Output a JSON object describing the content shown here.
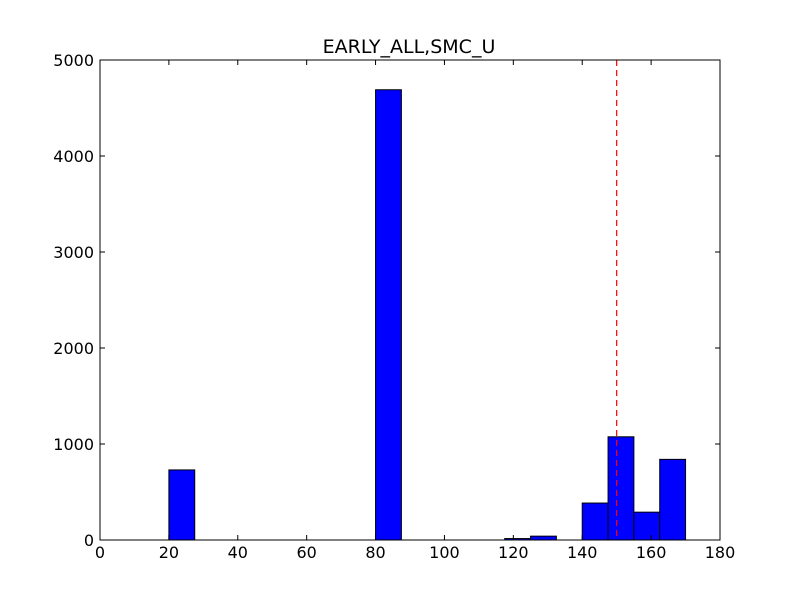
{
  "chart_data": {
    "type": "bar",
    "title": "EARLY_ALL,SMC_U",
    "xlabel": "",
    "ylabel": "",
    "xlim": [
      0,
      180
    ],
    "ylim": [
      0,
      5000
    ],
    "x_ticks": [
      0,
      20,
      40,
      60,
      80,
      100,
      120,
      140,
      160,
      180
    ],
    "y_ticks": [
      0,
      1000,
      2000,
      3000,
      4000,
      5000
    ],
    "bar_color": "#0000ff",
    "grid": false,
    "bins": [
      {
        "start": 20,
        "end": 27.5,
        "value": 730
      },
      {
        "start": 80,
        "end": 87.5,
        "value": 4690
      },
      {
        "start": 117.5,
        "end": 125,
        "value": 15
      },
      {
        "start": 125,
        "end": 132.5,
        "value": 40
      },
      {
        "start": 140,
        "end": 147.5,
        "value": 385
      },
      {
        "start": 147.5,
        "end": 155,
        "value": 1075
      },
      {
        "start": 155,
        "end": 162.5,
        "value": 290
      },
      {
        "start": 162.5,
        "end": 170,
        "value": 840
      }
    ],
    "reference_line": {
      "x": 150,
      "color": "#ff0000",
      "style": "dashed"
    }
  }
}
